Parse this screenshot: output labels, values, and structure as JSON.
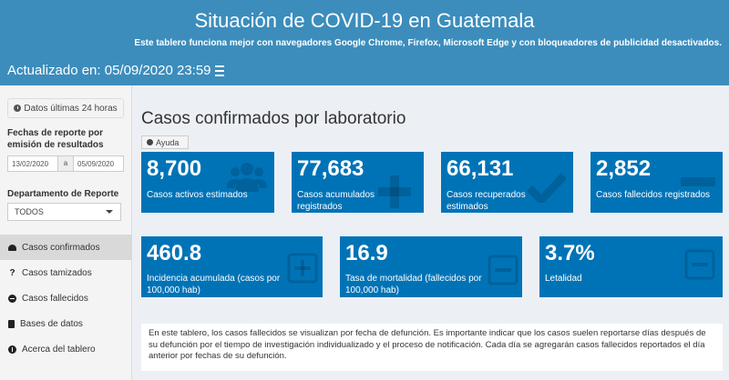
{
  "header": {
    "title": "Situación de COVID-19 en Guatemala",
    "subtitle": "Este tablero funciona mejor con navegadores Google Chrome, Firefox, Microsoft Edge y con bloqueadores de publicidad desactivados.",
    "updated": "Actualizado en: 05/09/2020 23:59",
    "menu_icon": "hamburger-icon"
  },
  "sidebar": {
    "btn_24h": "Datos últimas 24 horas",
    "dates_label": "Fechas de reporte por emisión de resultados",
    "date_from": "13/02/2020",
    "date_sep": "a",
    "date_to": "05/09/2020",
    "dept_label": "Departamento de Reporte",
    "dept_value": "TODOS",
    "nav": [
      {
        "label": "Casos confirmados",
        "icon": "gauge-icon"
      },
      {
        "label": "Casos tamizados",
        "icon": "question-icon"
      },
      {
        "label": "Casos fallecidos",
        "icon": "minus-circle-icon"
      },
      {
        "label": "Bases de datos",
        "icon": "file-icon"
      },
      {
        "label": "Acerca del tablero",
        "icon": "info-icon"
      }
    ]
  },
  "main": {
    "title": "Casos confirmados por laboratorio",
    "help": "Ayuda",
    "boxes": [
      {
        "value": "8,700",
        "caption": "Casos activos estimados",
        "icon": "users-icon"
      },
      {
        "value": "77,683",
        "caption": "Casos acumulados registrados",
        "icon": "plus-icon"
      },
      {
        "value": "66,131",
        "caption": "Casos recuperados estimados",
        "icon": "check-icon"
      },
      {
        "value": "2,852",
        "caption": "Casos fallecidos registrados",
        "icon": "minus-icon"
      },
      {
        "value": "460.8",
        "caption": "Incidencia acumulada (casos por 100,000 hab)",
        "icon": "plus-square-icon"
      },
      {
        "value": "16.9",
        "caption": "Tasa de mortalidad (fallecidos por 100,000 hab)",
        "icon": "minus-square-icon"
      },
      {
        "value": "3.7%",
        "caption": "Letalidad",
        "icon": "minus-square-icon"
      }
    ],
    "notice": "En este tablero, los casos fallecidos se visualizan por fecha de defunción. Es importante indicar que los casos suelen reportarse días después de su defunción por el tiempo de investigación individualizado y el proceso de notificación. Cada día se agregarán casos fallecidos reportados el día anterior por fechas de su defunción."
  },
  "colors": {
    "header": "#3c8dbc",
    "box": "#0073b7",
    "background": "#ecf0f5"
  }
}
